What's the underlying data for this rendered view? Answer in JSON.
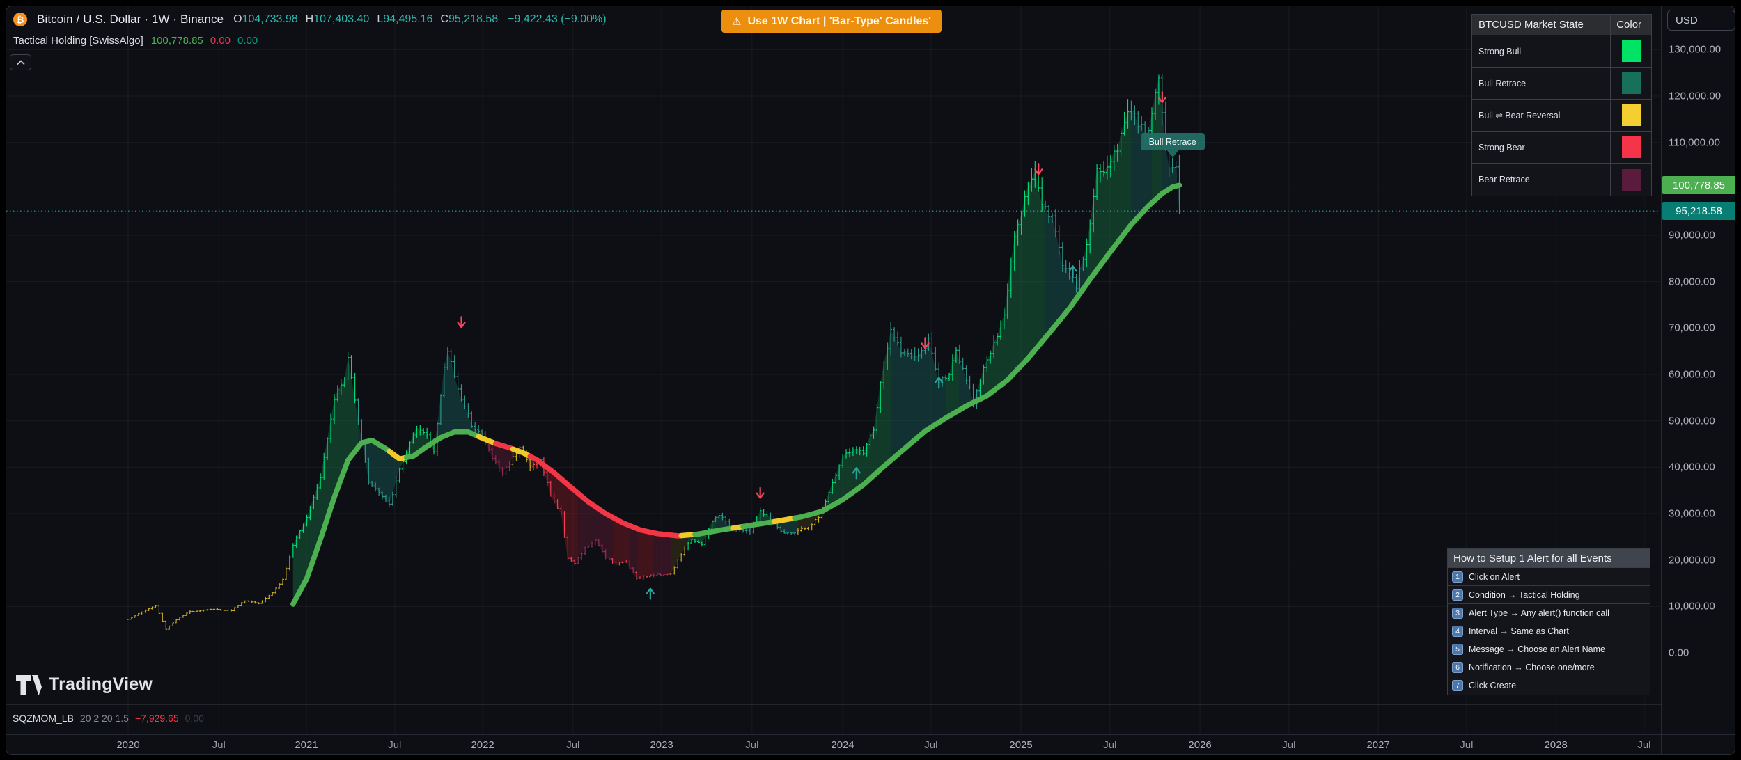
{
  "icons": {
    "bitcoin": "₿",
    "warning": "⚠",
    "collapse_pane": "chevron-up",
    "logo": "tradingview-mark"
  },
  "header": {
    "title": "Bitcoin / U.S. Dollar · 1W · Binance",
    "ohlc": [
      {
        "label": "O",
        "value": "104,733.98"
      },
      {
        "label": "H",
        "value": "107,403.40"
      },
      {
        "label": "L",
        "value": "94,495.16"
      },
      {
        "label": "C",
        "value": "95,218.58"
      }
    ],
    "change": "−9,422.43 (−9.00%)",
    "indicator": {
      "name": "Tactical Holding [SwissAlgo]",
      "values": [
        {
          "text": "100,778.85",
          "color": "#4caf50"
        },
        {
          "text": "0.00",
          "color": "#f23645"
        },
        {
          "text": "0.00",
          "color": "#0a9e81"
        }
      ]
    }
  },
  "banner": {
    "text": "Use 1W Chart | 'Bar-Type' Candles'"
  },
  "market_state_table": {
    "title": "BTCUSD Market State",
    "color_col": "Color",
    "rows": [
      {
        "label": "Strong Bull",
        "color": "#00e365"
      },
      {
        "label": "Bull Retrace",
        "color": "#17705a"
      },
      {
        "label": "Bull ⇌ Bear Reversal",
        "color": "#f5ce31"
      },
      {
        "label": "Strong Bear",
        "color": "#f53349"
      },
      {
        "label": "Bear Retrace",
        "color": "#5a1c3c"
      }
    ]
  },
  "tooltip": {
    "text": "Bull Retrace",
    "week": 304,
    "price": 112050
  },
  "alert_panel": {
    "title": "How to Setup 1 Alert for all Events",
    "steps": [
      {
        "num": "1",
        "text": "Click on Alert"
      },
      {
        "num": "2",
        "text": "Condition → Tactical Holding"
      },
      {
        "num": "3",
        "text": "Alert Type → Any alert() function call"
      },
      {
        "num": "4",
        "text": "Interval → Same as Chart"
      },
      {
        "num": "5",
        "text": "Message → Choose an Alert Name"
      },
      {
        "num": "6",
        "text": "Notification → Choose one/more"
      },
      {
        "num": "7",
        "text": "Click Create"
      }
    ]
  },
  "bottom": {
    "logo": "TradingView",
    "sqz": {
      "name": "SQZMOM_LB",
      "params": "20 2 20 1.5",
      "value": "−7,929.65",
      "value2": "0.00"
    }
  },
  "price_axis": {
    "currency": "USD",
    "ticks": [
      {
        "label": "130,000.00",
        "value": 130000
      },
      {
        "label": "120,000.00",
        "value": 120000
      },
      {
        "label": "110,000.00",
        "value": 110000
      },
      {
        "label": "90,000.00",
        "value": 90000
      },
      {
        "label": "80,000.00",
        "value": 80000
      },
      {
        "label": "70,000.00",
        "value": 70000
      },
      {
        "label": "60,000.00",
        "value": 60000
      },
      {
        "label": "50,000.00",
        "value": 50000
      },
      {
        "label": "40,000.00",
        "value": 40000
      },
      {
        "label": "30,000.00",
        "value": 30000
      },
      {
        "label": "20,000.00",
        "value": 20000
      },
      {
        "label": "10,000.00",
        "value": 10000
      },
      {
        "label": "0.00",
        "value": 0
      }
    ],
    "grid_extra": [
      100000
    ],
    "badges": [
      {
        "text": "100,778.85",
        "value": 100778.85,
        "bg": "#4caf50"
      },
      {
        "text": "95,218.58",
        "value": 95218.58,
        "bg": "#077d74"
      }
    ]
  },
  "time_axis": {
    "ticks": [
      {
        "label": "2020",
        "week": 0,
        "major": true
      },
      {
        "label": "Jul",
        "week": 26.4,
        "major": false
      },
      {
        "label": "2021",
        "week": 51.9,
        "major": true
      },
      {
        "label": "Jul",
        "week": 77.6,
        "major": false
      },
      {
        "label": "2022",
        "week": 103.2,
        "major": true
      },
      {
        "label": "Jul",
        "week": 129.5,
        "major": false
      },
      {
        "label": "2023",
        "week": 155.3,
        "major": true
      },
      {
        "label": "Jul",
        "week": 181.6,
        "major": false
      },
      {
        "label": "2024",
        "week": 208.0,
        "major": true
      },
      {
        "label": "Jul",
        "week": 233.7,
        "major": false
      },
      {
        "label": "2025",
        "week": 259.9,
        "major": true
      },
      {
        "label": "Jul",
        "week": 285.8,
        "major": false
      },
      {
        "label": "2026",
        "week": 312.0,
        "major": true
      },
      {
        "label": "Jul",
        "week": 337.9,
        "major": false
      },
      {
        "label": "2027",
        "week": 363.9,
        "major": true
      },
      {
        "label": "Jul",
        "week": 389.6,
        "major": false
      },
      {
        "label": "2028",
        "week": 415.6,
        "major": true
      },
      {
        "label": "Jul",
        "week": 441.3,
        "major": false
      }
    ]
  },
  "chart_data": {
    "type": "ohlc-bars",
    "symbol": "BTCUSD",
    "timeframe": "1W",
    "ylim": [
      0,
      140000
    ],
    "grid": true,
    "last_bar": {
      "o": 104733.98,
      "h": 107403.4,
      "l": 94495.16,
      "c": 95218.58
    },
    "last_line_value": 100778.85,
    "close_keypoints": [
      [
        0,
        7300
      ],
      [
        4,
        8800
      ],
      [
        8,
        10200
      ],
      [
        11,
        5100
      ],
      [
        14,
        7200
      ],
      [
        18,
        8900
      ],
      [
        24,
        9400
      ],
      [
        30,
        9150
      ],
      [
        34,
        11300
      ],
      [
        38,
        10700
      ],
      [
        42,
        13000
      ],
      [
        45,
        15800
      ],
      [
        48,
        23000
      ],
      [
        52,
        29400
      ],
      [
        56,
        38000
      ],
      [
        60,
        55000
      ],
      [
        63,
        59000
      ],
      [
        64,
        63500
      ],
      [
        66,
        55000
      ],
      [
        68,
        46000
      ],
      [
        70,
        37000
      ],
      [
        73,
        34500
      ],
      [
        76,
        31800
      ],
      [
        79,
        39500
      ],
      [
        82,
        45000
      ],
      [
        84,
        48200
      ],
      [
        87,
        47000
      ],
      [
        89,
        43800
      ],
      [
        92,
        61000
      ],
      [
        93,
        65200
      ],
      [
        95,
        60000
      ],
      [
        97,
        54500
      ],
      [
        100,
        49300
      ],
      [
        103,
        47100
      ],
      [
        106,
        42000
      ],
      [
        109,
        38800
      ],
      [
        112,
        42100
      ],
      [
        114,
        44600
      ],
      [
        117,
        40000
      ],
      [
        120,
        41500
      ],
      [
        123,
        34000
      ],
      [
        126,
        29700
      ],
      [
        128,
        20500
      ],
      [
        130,
        19200
      ],
      [
        133,
        22500
      ],
      [
        136,
        24100
      ],
      [
        139,
        20800
      ],
      [
        142,
        19200
      ],
      [
        145,
        19600
      ],
      [
        148,
        16100
      ],
      [
        151,
        16600
      ],
      [
        155,
        16900
      ],
      [
        158,
        17100
      ],
      [
        161,
        21300
      ],
      [
        164,
        24600
      ],
      [
        167,
        23200
      ],
      [
        170,
        28300
      ],
      [
        172,
        29900
      ],
      [
        175,
        27200
      ],
      [
        178,
        26800
      ],
      [
        181,
        26100
      ],
      [
        184,
        30600
      ],
      [
        187,
        29200
      ],
      [
        190,
        26100
      ],
      [
        194,
        25950
      ],
      [
        198,
        27100
      ],
      [
        201,
        29200
      ],
      [
        204,
        34600
      ],
      [
        208,
        42200
      ],
      [
        211,
        43900
      ],
      [
        214,
        42800
      ],
      [
        217,
        48300
      ],
      [
        220,
        62500
      ],
      [
        222,
        69000
      ],
      [
        225,
        65300
      ],
      [
        228,
        63900
      ],
      [
        231,
        64500
      ],
      [
        233,
        67500
      ],
      [
        236,
        58200
      ],
      [
        239,
        60500
      ],
      [
        241,
        64500
      ],
      [
        244,
        58800
      ],
      [
        246,
        54200
      ],
      [
        249,
        61500
      ],
      [
        252,
        66200
      ],
      [
        255,
        72500
      ],
      [
        258,
        90500
      ],
      [
        261,
        98200
      ],
      [
        264,
        104300
      ],
      [
        266,
        97100
      ],
      [
        269,
        93500
      ],
      [
        272,
        84300
      ],
      [
        276,
        78800
      ],
      [
        279,
        88000
      ],
      [
        282,
        103500
      ],
      [
        285,
        104500
      ],
      [
        288,
        108800
      ],
      [
        291,
        117500
      ],
      [
        293,
        115500
      ],
      [
        296,
        111200
      ],
      [
        298,
        115800
      ],
      [
        300,
        124200
      ],
      [
        302,
        110500
      ],
      [
        303,
        104500
      ],
      [
        305,
        104733.98
      ],
      [
        306,
        95218.58
      ]
    ],
    "line_keypoints": [
      [
        48,
        10500
      ],
      [
        52,
        16000
      ],
      [
        56,
        24500
      ],
      [
        60,
        33500
      ],
      [
        64,
        41500
      ],
      [
        68,
        45300
      ],
      [
        71,
        45800
      ],
      [
        75,
        44000
      ],
      [
        79,
        41800
      ],
      [
        83,
        42400
      ],
      [
        87,
        44500
      ],
      [
        91,
        46400
      ],
      [
        95,
        47600
      ],
      [
        99,
        47600
      ],
      [
        103,
        46300
      ],
      [
        107,
        45100
      ],
      [
        111,
        44200
      ],
      [
        115,
        43100
      ],
      [
        119,
        41600
      ],
      [
        124,
        38800
      ],
      [
        129,
        35600
      ],
      [
        134,
        32500
      ],
      [
        139,
        30000
      ],
      [
        144,
        28000
      ],
      [
        149,
        26500
      ],
      [
        154,
        25700
      ],
      [
        160,
        25200
      ],
      [
        166,
        25600
      ],
      [
        172,
        26400
      ],
      [
        178,
        27100
      ],
      [
        184,
        27800
      ],
      [
        190,
        28500
      ],
      [
        196,
        29300
      ],
      [
        202,
        30500
      ],
      [
        208,
        33000
      ],
      [
        214,
        36200
      ],
      [
        220,
        40200
      ],
      [
        226,
        44000
      ],
      [
        232,
        47800
      ],
      [
        238,
        50600
      ],
      [
        244,
        53200
      ],
      [
        250,
        55400
      ],
      [
        256,
        58800
      ],
      [
        262,
        63500
      ],
      [
        268,
        68800
      ],
      [
        274,
        74200
      ],
      [
        280,
        80500
      ],
      [
        286,
        86500
      ],
      [
        292,
        92300
      ],
      [
        297,
        96300
      ],
      [
        301,
        99000
      ],
      [
        304,
        100400
      ],
      [
        306,
        100778.85
      ]
    ],
    "bar_states": [
      [
        0,
        48,
        "reversal"
      ],
      [
        48,
        67,
        "bull"
      ],
      [
        67,
        79,
        "bull_retrace"
      ],
      [
        79,
        90,
        "bull"
      ],
      [
        90,
        104,
        "bull_retrace"
      ],
      [
        104,
        112,
        "bear_retrace"
      ],
      [
        112,
        118,
        "reversal"
      ],
      [
        118,
        131,
        "bear"
      ],
      [
        131,
        141,
        "bear_retrace"
      ],
      [
        141,
        146,
        "bear"
      ],
      [
        146,
        148,
        "bear_retrace"
      ],
      [
        148,
        153,
        "bear"
      ],
      [
        153,
        158,
        "bear_retrace"
      ],
      [
        158,
        163,
        "reversal"
      ],
      [
        163,
        171,
        "bull"
      ],
      [
        171,
        183,
        "bull_retrace"
      ],
      [
        183,
        187,
        "bull"
      ],
      [
        187,
        195,
        "bull_retrace"
      ],
      [
        195,
        203,
        "reversal"
      ],
      [
        203,
        222,
        "bull"
      ],
      [
        222,
        238,
        "bull_retrace"
      ],
      [
        238,
        242,
        "bull"
      ],
      [
        242,
        248,
        "bull_retrace"
      ],
      [
        248,
        267,
        "bull"
      ],
      [
        267,
        279,
        "bull_retrace"
      ],
      [
        279,
        292,
        "bull"
      ],
      [
        292,
        298,
        "bull_retrace"
      ],
      [
        298,
        301,
        "bull"
      ],
      [
        301,
        307,
        "bull_retrace"
      ]
    ],
    "line_states": [
      [
        48,
        76,
        "bull"
      ],
      [
        76,
        81,
        "reversal"
      ],
      [
        81,
        102,
        "bull"
      ],
      [
        102,
        107,
        "reversal"
      ],
      [
        107,
        112,
        "bear"
      ],
      [
        112,
        117,
        "reversal"
      ],
      [
        117,
        161,
        "bear"
      ],
      [
        161,
        165,
        "reversal"
      ],
      [
        165,
        176,
        "bull"
      ],
      [
        176,
        179,
        "reversal"
      ],
      [
        179,
        188,
        "bull"
      ],
      [
        188,
        194,
        "reversal"
      ],
      [
        194,
        307,
        "bull"
      ]
    ],
    "markers": [
      {
        "week": 97,
        "dir": "down",
        "price": 70000
      },
      {
        "week": 152,
        "dir": "up",
        "price": 14000
      },
      {
        "week": 184,
        "dir": "down",
        "price": 33200
      },
      {
        "week": 212,
        "dir": "up",
        "price": 40000
      },
      {
        "week": 232,
        "dir": "down",
        "price": 65500
      },
      {
        "week": 236,
        "dir": "up",
        "price": 59500
      },
      {
        "week": 265,
        "dir": "down",
        "price": 103000
      },
      {
        "week": 275,
        "dir": "up",
        "price": 83500
      },
      {
        "week": 301,
        "dir": "down",
        "price": 118500
      }
    ],
    "price_line": {
      "value": 95218.58,
      "color": "#26a69a",
      "style": "dotted"
    },
    "state_colors": {
      "bull": {
        "bar": "#00dd7a",
        "fill": "rgba(22,108,62,0.48)"
      },
      "bull_retrace": {
        "bar": "#2c9a8c",
        "fill": "rgba(24,84,80,0.50)"
      },
      "reversal": {
        "bar": "#cfae24",
        "fill": "rgba(140,115,28,0.20)"
      },
      "bear": {
        "bar": "#f43d52",
        "fill": "rgba(150,28,40,0.38)"
      },
      "bear_retrace": {
        "bar": "#9c2d57",
        "fill": "rgba(130,30,66,0.33)"
      }
    },
    "line_colors": {
      "bull": "#4caf50",
      "bear": "#f23645",
      "reversal": "#f0ca2b"
    },
    "marker_colors": {
      "up": "#26a69a",
      "down": "#f5465d"
    }
  }
}
